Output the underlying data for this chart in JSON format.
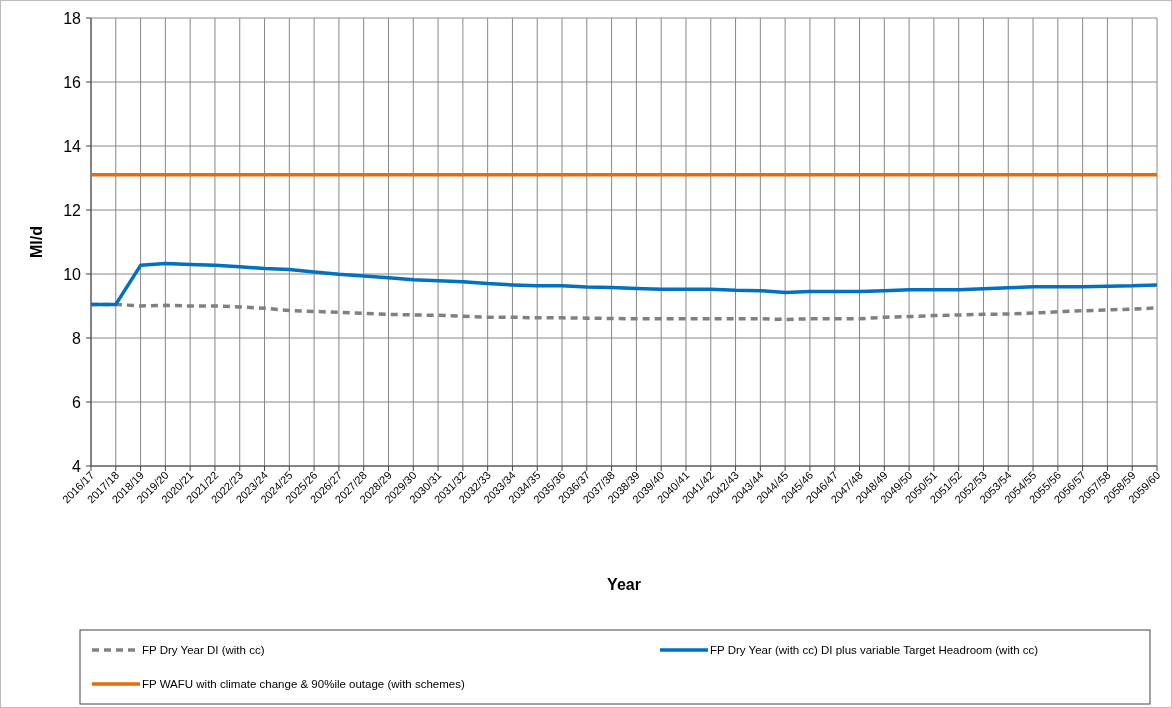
{
  "chart_data": {
    "type": "line",
    "xlabel": "Year",
    "ylabel": "Ml/d",
    "categories": [
      "2016/17",
      "2017/18",
      "2018/19",
      "2019/20",
      "2020/21",
      "2021/22",
      "2022/23",
      "2023/24",
      "2024/25",
      "2025/26",
      "2026/27",
      "2027/28",
      "2028/29",
      "2029/30",
      "2030/31",
      "2031/32",
      "2032/33",
      "2033/34",
      "2034/35",
      "2035/36",
      "2036/37",
      "2037/38",
      "2038/39",
      "2039/40",
      "2040/41",
      "2041/42",
      "2042/43",
      "2043/44",
      "2044/45",
      "2045/46",
      "2046/47",
      "2047/48",
      "2048/49",
      "2049/50",
      "2050/51",
      "2051/52",
      "2052/53",
      "2053/54",
      "2054/55",
      "2055/56",
      "2056/57",
      "2057/58",
      "2058/59",
      "2059/60"
    ],
    "series": [
      {
        "name": "FP Dry Year DI (with cc)",
        "color": "#808080",
        "line_style": "dashed",
        "values": [
          9.05,
          9.05,
          9.0,
          9.02,
          9.0,
          9.0,
          8.97,
          8.93,
          8.86,
          8.83,
          8.8,
          8.77,
          8.74,
          8.72,
          8.71,
          8.68,
          8.65,
          8.65,
          8.63,
          8.63,
          8.62,
          8.61,
          8.6,
          8.6,
          8.6,
          8.6,
          8.6,
          8.6,
          8.58,
          8.6,
          8.6,
          8.6,
          8.65,
          8.67,
          8.7,
          8.72,
          8.74,
          8.75,
          8.78,
          8.82,
          8.85,
          8.88,
          8.9,
          8.94
        ]
      },
      {
        "name": "FP Dry Year (with cc) DI plus variable Target Headroom (with cc)",
        "color": "#0070c0",
        "line_style": "solid",
        "values": [
          9.05,
          9.05,
          10.27,
          10.33,
          10.3,
          10.27,
          10.23,
          10.17,
          10.14,
          10.06,
          9.99,
          9.94,
          9.88,
          9.82,
          9.79,
          9.76,
          9.7,
          9.66,
          9.63,
          9.63,
          9.59,
          9.58,
          9.55,
          9.52,
          9.52,
          9.52,
          9.49,
          9.48,
          9.42,
          9.45,
          9.45,
          9.45,
          9.48,
          9.51,
          9.51,
          9.51,
          9.54,
          9.57,
          9.6,
          9.6,
          9.6,
          9.62,
          9.63,
          9.66
        ]
      },
      {
        "name": "FP WAFU with climate change & 90%ile outage (with schemes)",
        "color": "#e46c0a",
        "line_style": "solid",
        "values": [
          13.1,
          13.1,
          13.1,
          13.1,
          13.1,
          13.1,
          13.1,
          13.1,
          13.1,
          13.1,
          13.1,
          13.1,
          13.1,
          13.1,
          13.1,
          13.1,
          13.1,
          13.1,
          13.1,
          13.1,
          13.1,
          13.1,
          13.1,
          13.1,
          13.1,
          13.1,
          13.1,
          13.1,
          13.1,
          13.1,
          13.1,
          13.1,
          13.1,
          13.1,
          13.1,
          13.1,
          13.1,
          13.1,
          13.1,
          13.1,
          13.1,
          13.1,
          13.1,
          13.1
        ]
      }
    ],
    "ylim": [
      4,
      18
    ],
    "yticks": [
      4,
      6,
      8,
      10,
      12,
      14,
      16,
      18
    ],
    "grid": true,
    "legend": "bottom",
    "marker": "none"
  }
}
